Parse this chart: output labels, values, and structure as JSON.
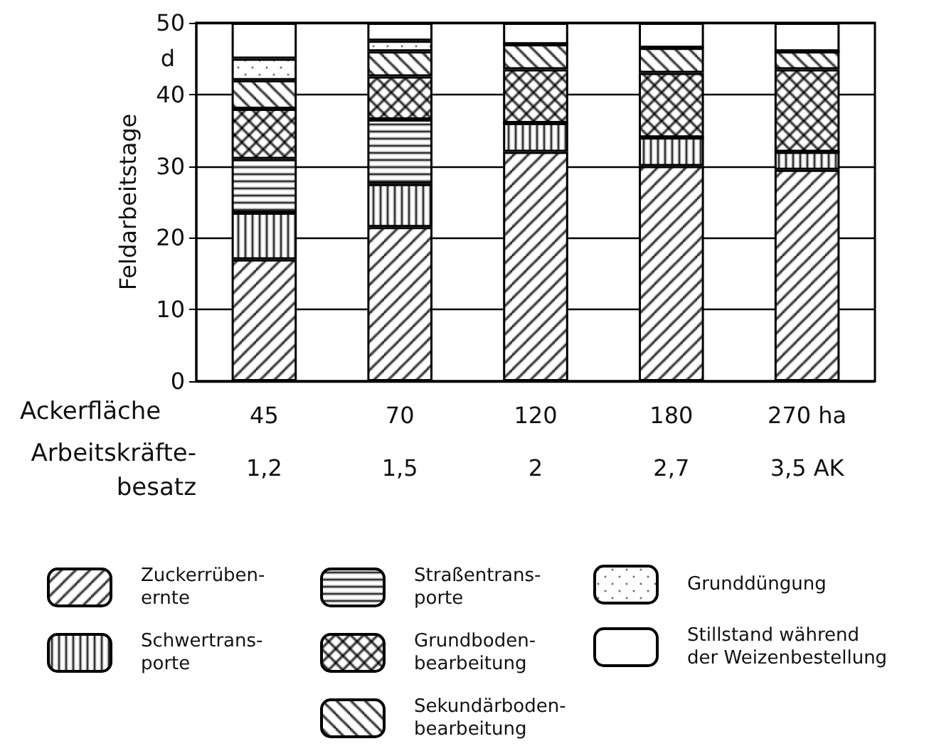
{
  "chart_data": {
    "type": "bar",
    "stacked": true,
    "ylabel": "Feldarbeitstage",
    "xlabel": "Ackerfläche",
    "categories": [
      "45",
      "70",
      "120",
      "180",
      "270 ha"
    ],
    "ylim": [
      0,
      50
    ],
    "yticks": [
      0,
      10,
      20,
      30,
      40,
      50
    ],
    "grid": "y",
    "legend": "bottom",
    "series": [
      {
        "name": "Zuckerrüben-\nernte",
        "color": "#000000",
        "values": [
          17,
          21.5,
          32,
          30,
          29.5
        ]
      },
      {
        "name": "Schwertrans-\nporte",
        "color": "#000000",
        "values": [
          6.5,
          6,
          4,
          4,
          2.5
        ]
      },
      {
        "name": "Straßentrans-\nporte",
        "color": "#000000",
        "values": [
          7.5,
          9,
          0,
          0,
          0
        ]
      },
      {
        "name": "Grundboden-\nbearbeitung",
        "color": "#000000",
        "values": [
          7,
          6,
          7.5,
          9,
          11.5
        ]
      },
      {
        "name": "Sekundärboden-\nbearbeitung",
        "color": "#000000",
        "values": [
          4,
          3.5,
          3.5,
          3.5,
          2.5
        ]
      },
      {
        "name": "Grunddüngung",
        "color": "#000000",
        "values": [
          3,
          1.5,
          0,
          0,
          0
        ]
      },
      {
        "name": "Stillstand während\nder Weizenbestellung",
        "color": "#000000",
        "values": [
          5,
          2.5,
          3,
          3.5,
          4
        ]
      }
    ],
    "annotations": [
      "d",
      "Arbeitskräfte-\nbesatz",
      "1,2",
      "1,5",
      "2",
      "2,7",
      "3,5 AK"
    ]
  }
}
